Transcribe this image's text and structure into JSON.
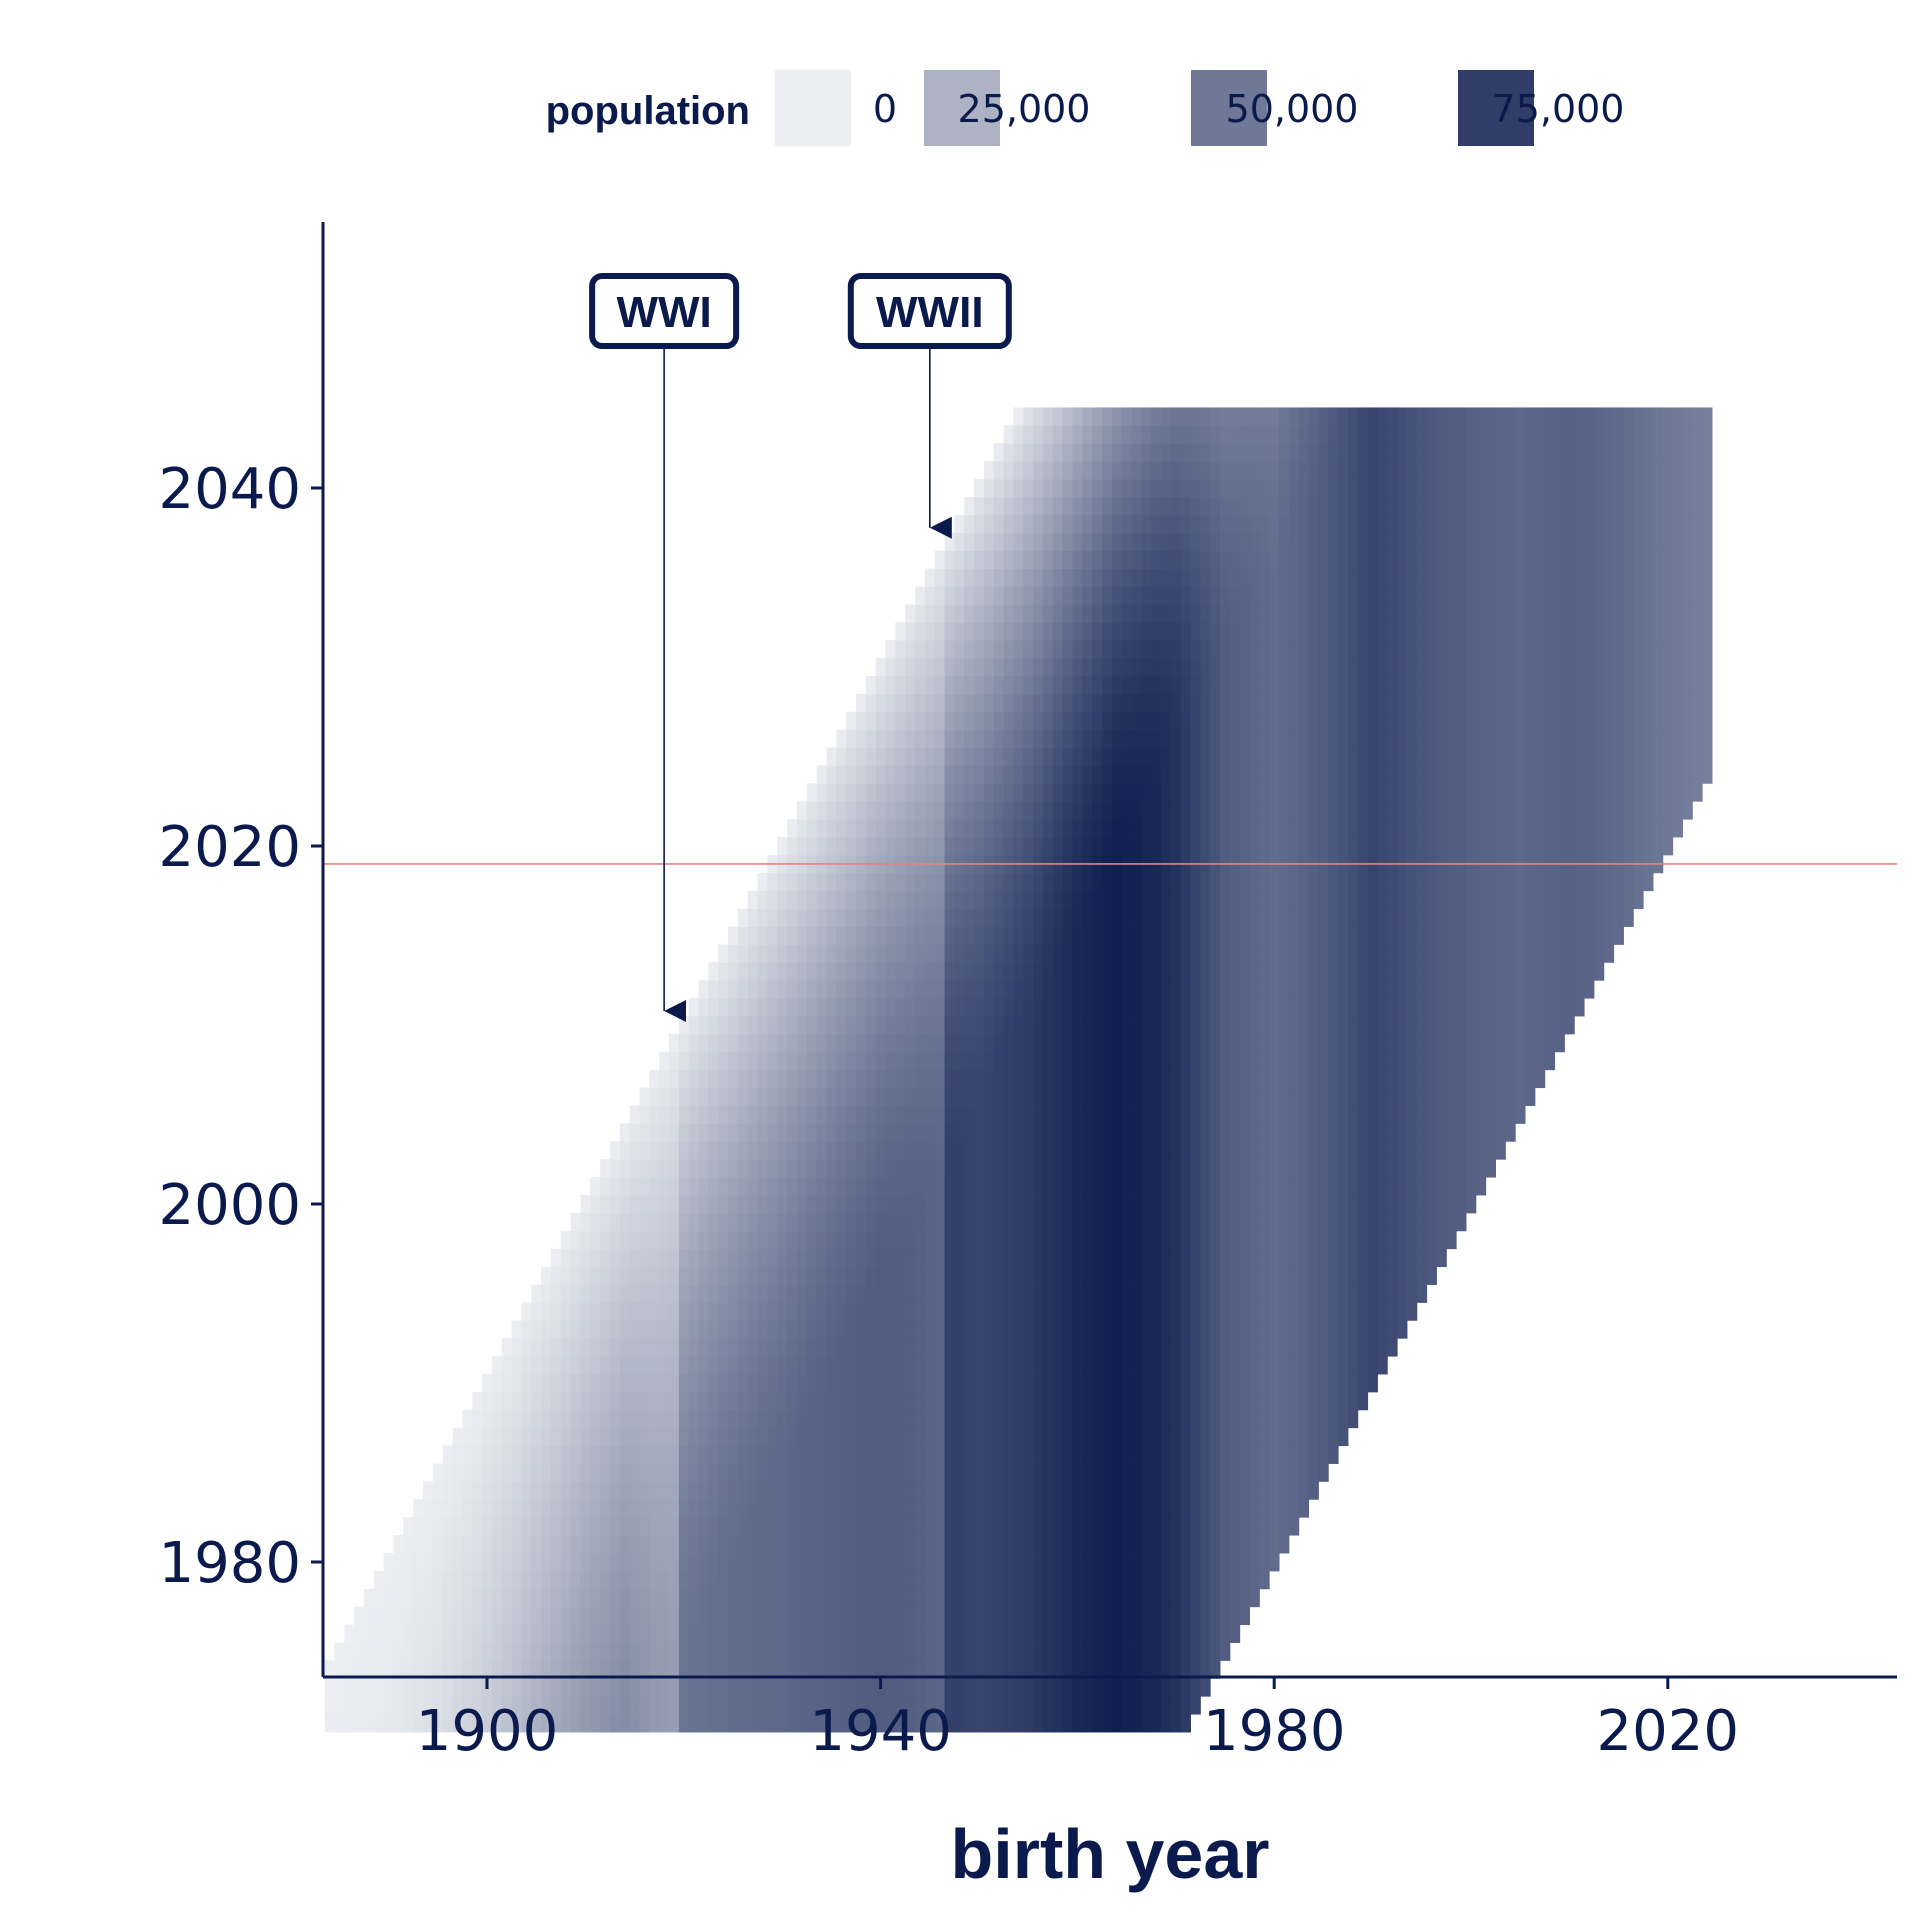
{
  "chart_data": {
    "type": "heatmap",
    "title": "",
    "xlabel": "birth year",
    "ylabel": "",
    "xlim": [
      1884,
      2024
    ],
    "ylim": [
      1971,
      2045
    ],
    "x_ticks": [
      1900,
      1940,
      1980,
      2020
    ],
    "y_ticks": [
      1980,
      2000,
      2020,
      2040
    ],
    "x_tick_labels": [
      "1900",
      "1940",
      "1980",
      "2020"
    ],
    "y_tick_labels": [
      "1980",
      "2000",
      "2020",
      "2040"
    ],
    "grid": false,
    "cell_rule": "one cell per birth year and calendar year; cells exist for ages 0 to 90 (birth year between year-90 and year), up to birth year 2024",
    "reference_line": {
      "year": 2019,
      "color": "#e8827f"
    },
    "legend": {
      "title": "population",
      "placement": "top",
      "entries": [
        {
          "label": "0",
          "value": 0
        },
        {
          "label": "25,000",
          "value": 25000
        },
        {
          "label": "50,000",
          "value": 50000
        },
        {
          "label": "75,000",
          "value": 75000
        }
      ]
    },
    "color_scale": {
      "min": 0,
      "max": 90000,
      "low": "#eceef2",
      "high": "#0b1a4d"
    },
    "cohort_size_by_birth_year": [
      [
        1884,
        3000
      ],
      [
        1890,
        6000
      ],
      [
        1895,
        12000
      ],
      [
        1900,
        20000
      ],
      [
        1905,
        30000
      ],
      [
        1910,
        38000
      ],
      [
        1914,
        42000
      ],
      [
        1917,
        36000
      ],
      [
        1919,
        34000
      ],
      [
        1920,
        52000
      ],
      [
        1925,
        55000
      ],
      [
        1930,
        57000
      ],
      [
        1935,
        60000
      ],
      [
        1940,
        62000
      ],
      [
        1944,
        60000
      ],
      [
        1946,
        58000
      ],
      [
        1947,
        74000
      ],
      [
        1950,
        72000
      ],
      [
        1955,
        76000
      ],
      [
        1960,
        84000
      ],
      [
        1964,
        88000
      ],
      [
        1968,
        84000
      ],
      [
        1970,
        80000
      ],
      [
        1975,
        62000
      ],
      [
        1980,
        55000
      ],
      [
        1985,
        62000
      ],
      [
        1990,
        72000
      ],
      [
        1995,
        65000
      ],
      [
        2000,
        60000
      ],
      [
        2005,
        57000
      ],
      [
        2010,
        60000
      ],
      [
        2015,
        56000
      ],
      [
        2020,
        50000
      ],
      [
        2024,
        47000
      ]
    ],
    "annotations": [
      {
        "label": "WWI",
        "birth_year": 1918,
        "year": 2010
      },
      {
        "label": "WWII",
        "birth_year": 1945,
        "year": 2037
      }
    ]
  }
}
